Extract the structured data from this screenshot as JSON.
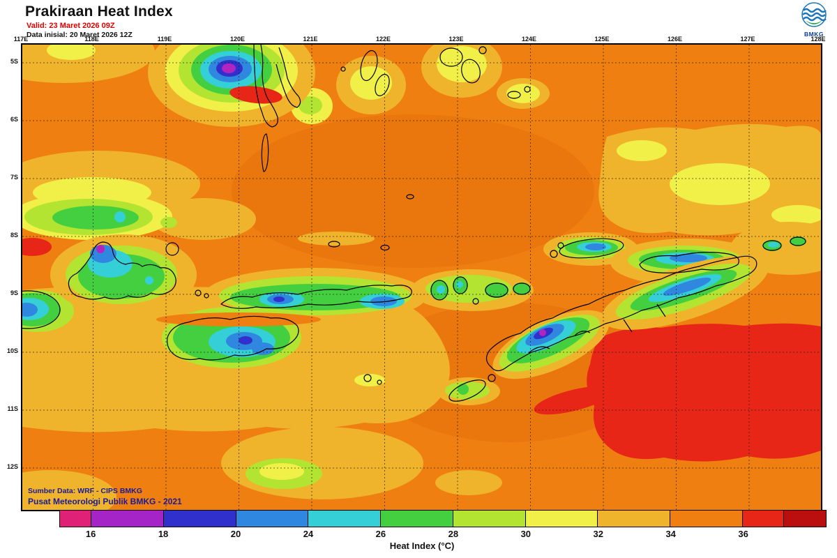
{
  "header": {
    "title": "Prakiraan Heat Index",
    "valid": "Valid: 23 Maret 2026 09Z",
    "init": "Data inisial: 20 Maret 2026 12Z"
  },
  "logo": {
    "label": "BMKG"
  },
  "map": {
    "lon_labels": [
      "117E",
      "118E",
      "119E",
      "120E",
      "121E",
      "122E",
      "123E",
      "124E",
      "125E",
      "126E",
      "127E",
      "128E"
    ],
    "lat_labels": [
      "5S",
      "6S",
      "7S",
      "8S",
      "9S",
      "10S",
      "11S",
      "12S"
    ],
    "credit_line1": "Sumber Data: WRF - CIPS BMKG",
    "credit_line2": "Pusat Meteorologi Publik BMKG - 2021"
  },
  "colorbar": {
    "caption": "Heat Index (°C)",
    "ticks": [
      "16",
      "18",
      "20",
      "24",
      "26",
      "28",
      "30",
      "32",
      "34",
      "36"
    ],
    "segments": [
      {
        "color": "#e02178",
        "width": 4.1
      },
      {
        "color": "#a524c8",
        "width": 9.45
      },
      {
        "color": "#3030cc",
        "width": 9.45
      },
      {
        "color": "#2f87e0",
        "width": 9.45
      },
      {
        "color": "#35cfd8",
        "width": 9.45
      },
      {
        "color": "#44cf40",
        "width": 9.45
      },
      {
        "color": "#b4e432",
        "width": 9.45
      },
      {
        "color": "#f0f048",
        "width": 9.45
      },
      {
        "color": "#efb42c",
        "width": 9.45
      },
      {
        "color": "#ee7f10",
        "width": 9.45
      },
      {
        "color": "#e82618",
        "width": 5.4
      },
      {
        "color": "#bb0f0f",
        "width": 5.45
      }
    ]
  }
}
